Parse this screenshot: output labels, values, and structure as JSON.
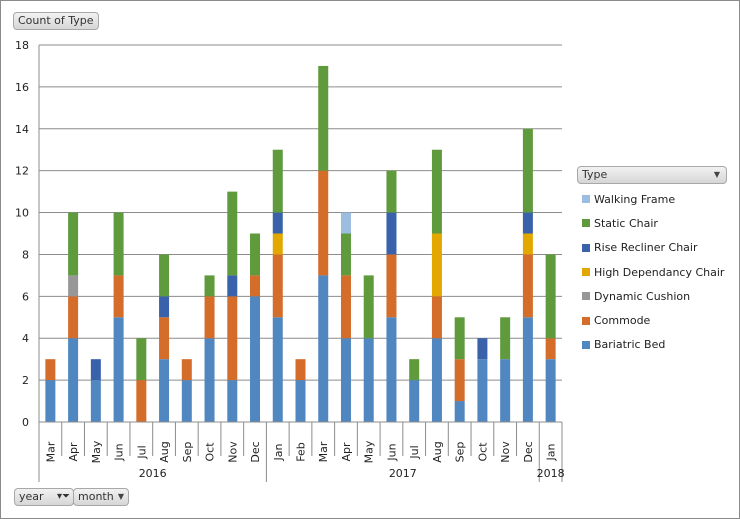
{
  "field_buttons": {
    "value_field": "Count of Type",
    "legend_field": "Type",
    "axis_fields": [
      "year",
      "month"
    ]
  },
  "chart_data": {
    "type": "bar",
    "stacked": true,
    "title": "",
    "xlabel": "",
    "ylabel": "",
    "ylim": [
      0,
      18
    ],
    "yticks": [
      0,
      2,
      4,
      6,
      8,
      10,
      12,
      14,
      16,
      18
    ],
    "grid": true,
    "legend_placement": "right",
    "categories": [
      "Mar",
      "Apr",
      "May",
      "Jun",
      "Jul",
      "Aug",
      "Sep",
      "Oct",
      "Nov",
      "Dec",
      "Jan",
      "Feb",
      "Mar",
      "Apr",
      "May",
      "Jun",
      "Jul",
      "Aug",
      "Sep",
      "Oct",
      "Nov",
      "Dec",
      "Jan"
    ],
    "groups": [
      {
        "label": "2016",
        "count": 10
      },
      {
        "label": "2017",
        "count": 12
      },
      {
        "label": "2018",
        "count": 1
      }
    ],
    "series": [
      {
        "name": "Bariatric Bed",
        "color": "#5087C0",
        "values": [
          2,
          4,
          2,
          5,
          0,
          3,
          2,
          4,
          2,
          6,
          5,
          2,
          7,
          4,
          4,
          5,
          2,
          4,
          1,
          3,
          3,
          5,
          3
        ]
      },
      {
        "name": "Commode",
        "color": "#D46C2A",
        "values": [
          1,
          2,
          0,
          2,
          2,
          2,
          1,
          2,
          4,
          1,
          3,
          1,
          5,
          3,
          0,
          3,
          0,
          2,
          2,
          0,
          0,
          3,
          1
        ]
      },
      {
        "name": "Dynamic Cushion",
        "color": "#979797",
        "values": [
          0,
          1,
          0,
          0,
          0,
          0,
          0,
          0,
          0,
          0,
          0,
          0,
          0,
          0,
          0,
          0,
          0,
          0,
          0,
          0,
          0,
          0,
          0
        ]
      },
      {
        "name": "High Dependancy Chair",
        "color": "#E2A800",
        "values": [
          0,
          0,
          0,
          0,
          0,
          0,
          0,
          0,
          0,
          0,
          1,
          0,
          0,
          0,
          0,
          0,
          0,
          3,
          0,
          0,
          0,
          1,
          0
        ]
      },
      {
        "name": "Rise Recliner Chair",
        "color": "#3A62AB",
        "values": [
          0,
          0,
          1,
          0,
          0,
          1,
          0,
          0,
          1,
          0,
          1,
          0,
          0,
          0,
          0,
          2,
          0,
          0,
          0,
          1,
          0,
          1,
          0
        ]
      },
      {
        "name": "Static Chair",
        "color": "#5F9A3D",
        "values": [
          0,
          3,
          0,
          3,
          2,
          2,
          0,
          1,
          4,
          2,
          3,
          0,
          5,
          2,
          3,
          2,
          1,
          4,
          2,
          0,
          2,
          4,
          4
        ]
      },
      {
        "name": "Walking Frame",
        "color": "#9DBDE0",
        "values": [
          0,
          0,
          0,
          0,
          0,
          0,
          0,
          0,
          0,
          0,
          0,
          0,
          0,
          1,
          0,
          0,
          0,
          0,
          0,
          0,
          0,
          0,
          0
        ]
      }
    ]
  }
}
